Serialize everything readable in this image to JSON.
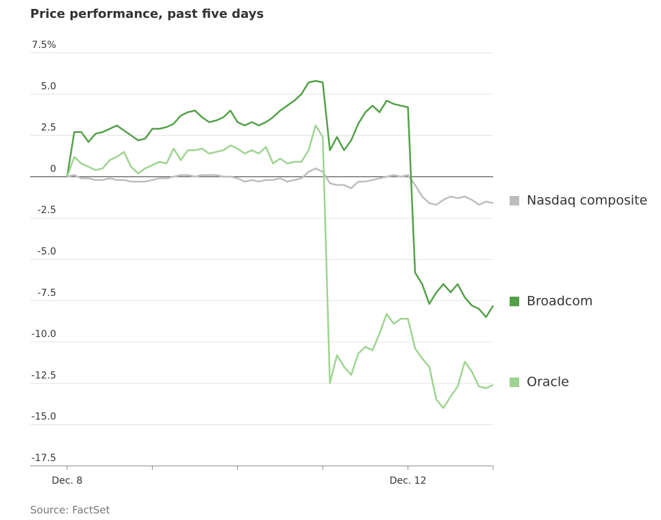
{
  "chart_data": {
    "type": "line",
    "title": "Price performance, past five days",
    "source": "Source: FactSet",
    "categories": [
      "Dec. 8",
      null,
      null,
      null,
      null,
      null,
      null,
      null,
      null,
      null,
      null,
      null,
      null,
      null,
      null,
      null,
      null,
      null,
      null,
      null,
      null,
      null,
      null,
      null,
      null,
      null,
      null,
      null,
      null,
      null,
      null,
      null,
      null,
      null,
      null,
      null,
      null,
      null,
      null,
      null,
      null,
      null,
      null,
      null,
      null,
      null,
      null,
      null,
      "Dec. 12",
      null,
      null,
      null,
      null,
      null,
      null,
      null,
      null,
      null,
      null,
      null,
      null
    ],
    "series": [
      {
        "name": "Nasdaq composite",
        "color": "#bdbdbd",
        "values": [
          0,
          0.1,
          -0.1,
          -0.1,
          -0.2,
          -0.2,
          -0.1,
          -0.2,
          -0.2,
          -0.3,
          -0.3,
          -0.3,
          -0.2,
          -0.1,
          -0.1,
          0.0,
          0.1,
          0.1,
          0.0,
          0.1,
          0.1,
          0.1,
          0.0,
          0.0,
          -0.1,
          -0.3,
          -0.2,
          -0.3,
          -0.2,
          -0.2,
          -0.1,
          -0.3,
          -0.2,
          -0.1,
          0.3,
          0.5,
          0.3,
          -0.4,
          -0.5,
          -0.5,
          -0.7,
          -0.3,
          -0.3,
          -0.2,
          -0.1,
          0.0,
          0.1,
          0.0,
          0.1,
          -0.5,
          -1.2,
          -1.6,
          -1.7,
          -1.4,
          -1.2,
          -1.3,
          -1.2,
          -1.4,
          -1.7,
          -1.5,
          -1.6
        ]
      },
      {
        "name": "Broadcom",
        "color": "#52a047",
        "values": [
          0,
          2.7,
          2.7,
          2.1,
          2.6,
          2.7,
          2.9,
          3.1,
          2.8,
          2.5,
          2.2,
          2.3,
          2.9,
          2.9,
          3.0,
          3.2,
          3.7,
          3.9,
          4.0,
          3.6,
          3.3,
          3.4,
          3.6,
          4.0,
          3.3,
          3.1,
          3.3,
          3.1,
          3.3,
          3.6,
          4.0,
          4.3,
          4.6,
          5.0,
          5.7,
          5.8,
          5.7,
          1.6,
          2.4,
          1.6,
          2.2,
          3.2,
          3.9,
          4.3,
          3.9,
          4.6,
          4.4,
          4.3,
          4.2,
          -5.8,
          -6.5,
          -7.7,
          -7.0,
          -6.5,
          -7.0,
          -6.5,
          -7.3,
          -7.8,
          -8.0,
          -8.5,
          -7.8
        ]
      },
      {
        "name": "Oracle",
        "color": "#9dd48f",
        "values": [
          0,
          1.2,
          0.8,
          0.6,
          0.4,
          0.5,
          1.0,
          1.2,
          1.5,
          0.6,
          0.2,
          0.5,
          0.7,
          0.9,
          0.8,
          1.7,
          1.0,
          1.6,
          1.6,
          1.7,
          1.4,
          1.5,
          1.6,
          1.9,
          1.7,
          1.4,
          1.6,
          1.4,
          1.8,
          0.8,
          1.1,
          0.8,
          0.9,
          0.9,
          1.6,
          3.1,
          2.4,
          -12.5,
          -10.8,
          -11.5,
          -12.0,
          -10.7,
          -10.3,
          -10.5,
          -9.5,
          -8.3,
          -8.9,
          -8.6,
          -8.6,
          -10.4,
          -11.0,
          -11.5,
          -13.5,
          -14.0,
          -13.3,
          -12.7,
          -11.2,
          -11.8,
          -12.7,
          -12.8,
          -12.6
        ]
      }
    ],
    "ylim": [
      -17.5,
      7.5
    ],
    "yticks": [
      {
        "value": 7.5,
        "label": "7.5%"
      },
      {
        "value": 5,
        "label": "5.0"
      },
      2.5,
      0,
      -2.5,
      {
        "value": -5,
        "label": "-5.0"
      },
      -7.5,
      {
        "value": -10,
        "label": "-10.0"
      },
      -12.5,
      {
        "value": -15,
        "label": "-15.0"
      },
      -17.5
    ],
    "grid": true
  }
}
